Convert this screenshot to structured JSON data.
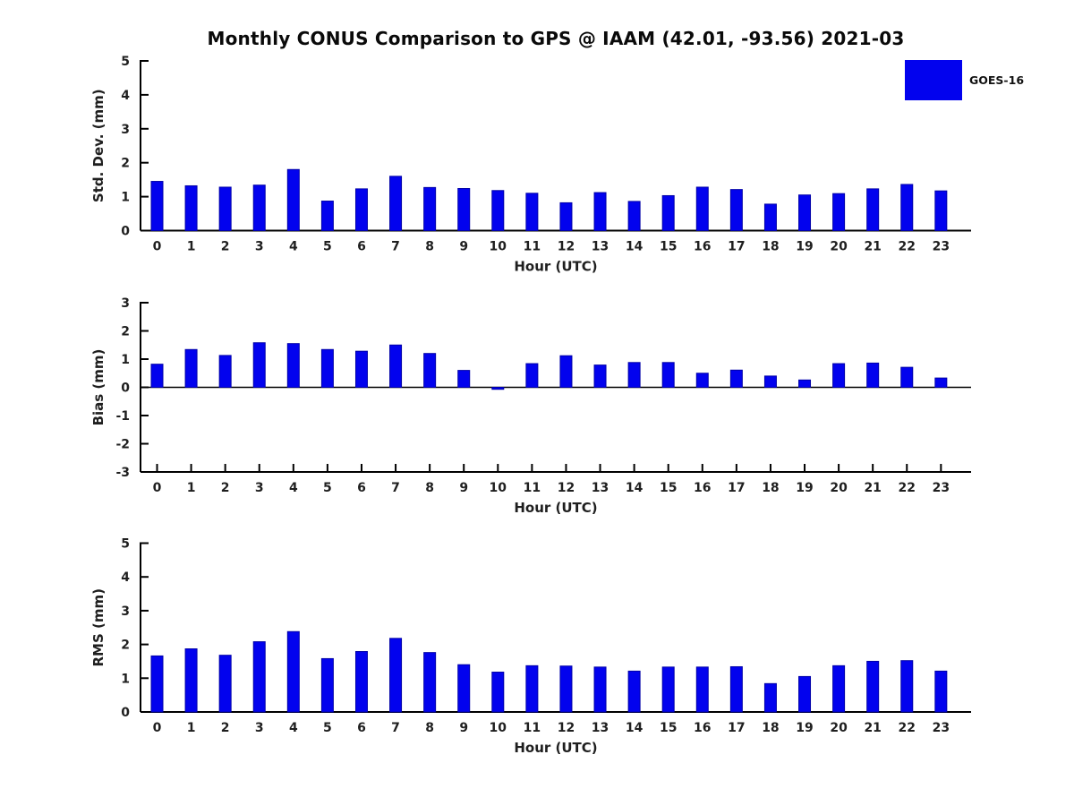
{
  "title": "Monthly CONUS Comparison to GPS @ IAAM (42.01, -93.56) 2021-03",
  "legend": {
    "label": "GOES-16",
    "position": "top-right"
  },
  "colors": {
    "bar_fill": "#0202ee",
    "bar_edge": "#0000a8",
    "axis": "#000000",
    "text": "#1f1f1f",
    "background": "#ffffff"
  },
  "chart_data": [
    {
      "type": "bar",
      "name": "stddev",
      "title": "",
      "ylabel": "Std. Dev. (mm)",
      "xlabel": "Hour (UTC)",
      "ylim": [
        0,
        5
      ],
      "yticks": [
        0,
        1,
        2,
        3,
        4,
        5
      ],
      "grid": false,
      "categories": [
        "0",
        "1",
        "2",
        "3",
        "4",
        "5",
        "6",
        "7",
        "8",
        "9",
        "10",
        "11",
        "12",
        "13",
        "14",
        "15",
        "16",
        "17",
        "18",
        "19",
        "20",
        "21",
        "22",
        "23"
      ],
      "series": [
        {
          "name": "GOES-16",
          "values": [
            1.45,
            1.32,
            1.28,
            1.34,
            1.8,
            0.87,
            1.23,
            1.6,
            1.27,
            1.24,
            1.18,
            1.1,
            0.82,
            1.12,
            0.86,
            1.03,
            1.28,
            1.21,
            0.78,
            1.05,
            1.09,
            1.23,
            1.36,
            1.17
          ]
        }
      ]
    },
    {
      "type": "bar",
      "name": "bias",
      "title": "",
      "ylabel": "Bias (mm)",
      "xlabel": "Hour (UTC)",
      "ylim": [
        -3,
        3
      ],
      "yticks": [
        -3,
        -2,
        -1,
        0,
        1,
        2,
        3
      ],
      "grid": false,
      "categories": [
        "0",
        "1",
        "2",
        "3",
        "4",
        "5",
        "6",
        "7",
        "8",
        "9",
        "10",
        "11",
        "12",
        "13",
        "14",
        "15",
        "16",
        "17",
        "18",
        "19",
        "20",
        "21",
        "22",
        "23"
      ],
      "series": [
        {
          "name": "GOES-16",
          "values": [
            0.82,
            1.34,
            1.13,
            1.58,
            1.55,
            1.34,
            1.28,
            1.5,
            1.2,
            0.6,
            -0.07,
            0.84,
            1.12,
            0.79,
            0.88,
            0.88,
            0.5,
            0.61,
            0.4,
            0.26,
            0.84,
            0.86,
            0.71,
            0.33
          ]
        }
      ]
    },
    {
      "type": "bar",
      "name": "rms",
      "title": "",
      "ylabel": "RMS (mm)",
      "xlabel": "Hour (UTC)",
      "ylim": [
        0,
        5
      ],
      "yticks": [
        0,
        1,
        2,
        3,
        4,
        5
      ],
      "grid": false,
      "categories": [
        "0",
        "1",
        "2",
        "3",
        "4",
        "5",
        "6",
        "7",
        "8",
        "9",
        "10",
        "11",
        "12",
        "13",
        "14",
        "15",
        "16",
        "17",
        "18",
        "19",
        "20",
        "21",
        "22",
        "23"
      ],
      "series": [
        {
          "name": "GOES-16",
          "values": [
            1.66,
            1.87,
            1.68,
            2.08,
            2.38,
            1.58,
            1.79,
            2.18,
            1.76,
            1.4,
            1.18,
            1.37,
            1.36,
            1.33,
            1.21,
            1.33,
            1.33,
            1.34,
            0.84,
            1.05,
            1.37,
            1.5,
            1.52,
            1.21
          ]
        }
      ]
    }
  ]
}
